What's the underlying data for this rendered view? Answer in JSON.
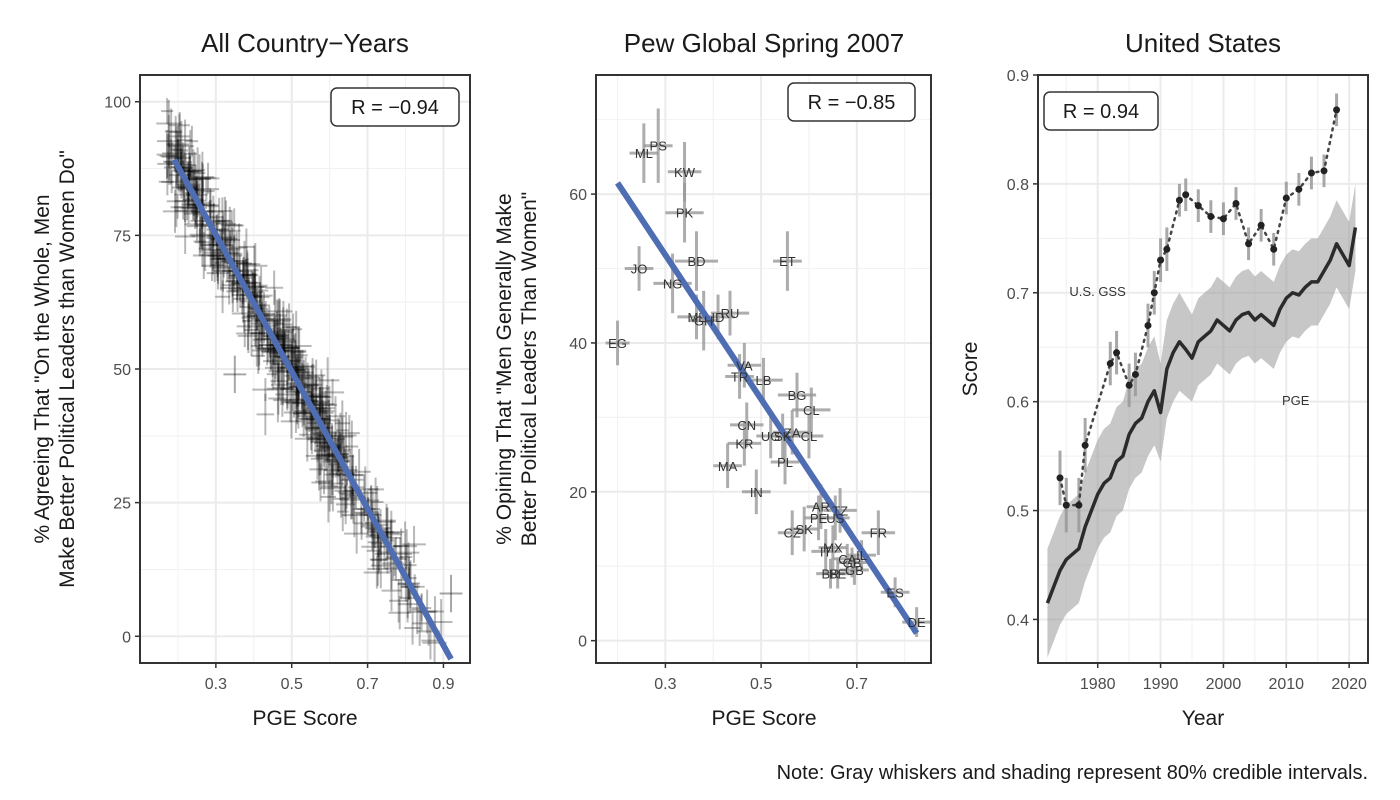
{
  "note": "Note: Gray whiskers and shading represent 80% credible intervals.",
  "colors": {
    "fit_line": "#4f6db3",
    "point": "#333333",
    "ci": "#999999",
    "grid": "#ebebeb",
    "border": "#333333"
  },
  "chart_data": [
    {
      "type": "scatter",
      "title": "All Country−Years",
      "xlabel": "PGE Score",
      "ylabel": "% Agreeing That \"On the Whole, Men|Make Better Political Leaders than Women Do\"",
      "xlim": [
        0.1,
        0.97
      ],
      "ylim": [
        -5,
        105
      ],
      "xticks": [
        0.3,
        0.5,
        0.7,
        0.9
      ],
      "xtick_labels": [
        "0.3",
        "0.5",
        "0.7",
        "0.9"
      ],
      "yticks": [
        0,
        25,
        50,
        75,
        100
      ],
      "ytick_labels": [
        "0",
        "25",
        "50",
        "75",
        "100"
      ],
      "annotation": "R = −0.94",
      "fit": {
        "slope": -128,
        "intercept": 113.5,
        "x": [
          0.19,
          0.92
        ]
      },
      "cloud": {
        "n": 520,
        "x_range": [
          0.17,
          0.93
        ],
        "slope": -128,
        "intercept": 113.5,
        "noise_sd": 4.2,
        "whisker_x": 0.025,
        "whisker_y": 3.5
      },
      "outliers": [
        {
          "x": 0.35,
          "y": 49
        },
        {
          "x": 0.92,
          "y": 8
        },
        {
          "x": 0.2,
          "y": 92
        }
      ],
      "grid": true
    },
    {
      "type": "scatter",
      "title": "Pew Global Spring 2007",
      "xlabel": "PGE Score",
      "ylabel": "% Opining That \"Men Generally Make|Better Political Leaders Than Women\"",
      "xlim": [
        0.155,
        0.855
      ],
      "ylim": [
        -3,
        76
      ],
      "xticks": [
        0.3,
        0.5,
        0.7
      ],
      "xtick_labels": [
        "0.3",
        "0.5",
        "0.7"
      ],
      "yticks": [
        0,
        20,
        40,
        60
      ],
      "ytick_labels": [
        "0",
        "20",
        "40",
        "60"
      ],
      "annotation": "R = −0.85",
      "fit": {
        "x": [
          0.2,
          0.825
        ],
        "y": [
          61.5,
          1.0
        ]
      },
      "points": [
        {
          "label": "PS",
          "x": 0.285,
          "y": 66.5,
          "ex": 0.03,
          "ey": 5
        },
        {
          "label": "ML",
          "x": 0.255,
          "y": 65.5,
          "ex": 0.03,
          "ey": 4
        },
        {
          "label": "KW",
          "x": 0.34,
          "y": 63,
          "ex": 0.035,
          "ey": 4
        },
        {
          "label": "PK",
          "x": 0.34,
          "y": 57.5,
          "ex": 0.04,
          "ey": 4
        },
        {
          "label": "BD",
          "x": 0.365,
          "y": 51,
          "ex": 0.045,
          "ey": 4
        },
        {
          "label": "ET",
          "x": 0.555,
          "y": 51,
          "ex": 0.03,
          "ey": 4
        },
        {
          "label": "JO",
          "x": 0.245,
          "y": 50,
          "ex": 0.03,
          "ey": 3
        },
        {
          "label": "NG",
          "x": 0.315,
          "y": 48,
          "ex": 0.04,
          "ey": 4
        },
        {
          "label": "ML",
          "x": 0.365,
          "y": 43.5,
          "ex": 0.04,
          "ey": 3
        },
        {
          "label": "GH",
          "x": 0.38,
          "y": 43,
          "ex": 0.03,
          "ey": 4
        },
        {
          "label": "ID",
          "x": 0.41,
          "y": 43.5,
          "ex": 0.035,
          "ey": 3
        },
        {
          "label": "RU",
          "x": 0.435,
          "y": 44,
          "ex": 0.04,
          "ey": 3
        },
        {
          "label": "EG",
          "x": 0.2,
          "y": 40,
          "ex": 0.025,
          "ey": 3
        },
        {
          "label": "VA",
          "x": 0.465,
          "y": 37,
          "ex": 0.035,
          "ey": 3
        },
        {
          "label": "TR",
          "x": 0.455,
          "y": 35.5,
          "ex": 0.03,
          "ey": 3
        },
        {
          "label": "LB",
          "x": 0.505,
          "y": 35,
          "ex": 0.04,
          "ey": 3
        },
        {
          "label": "BG",
          "x": 0.575,
          "y": 33,
          "ex": 0.04,
          "ey": 3
        },
        {
          "label": "CL",
          "x": 0.605,
          "y": 31,
          "ex": 0.04,
          "ey": 3
        },
        {
          "label": "CN",
          "x": 0.47,
          "y": 29,
          "ex": 0.035,
          "ey": 3
        },
        {
          "label": "ZA",
          "x": 0.565,
          "y": 28,
          "ex": 0.04,
          "ey": 3
        },
        {
          "label": "UG",
          "x": 0.52,
          "y": 27.5,
          "ex": 0.03,
          "ey": 3
        },
        {
          "label": "SK",
          "x": 0.545,
          "y": 27.5,
          "ex": 0.03,
          "ey": 3
        },
        {
          "label": "CL",
          "x": 0.6,
          "y": 27.5,
          "ex": 0.03,
          "ey": 3
        },
        {
          "label": "KR",
          "x": 0.465,
          "y": 26.5,
          "ex": 0.035,
          "ey": 3
        },
        {
          "label": "PL",
          "x": 0.55,
          "y": 24,
          "ex": 0.03,
          "ey": 3
        },
        {
          "label": "MA",
          "x": 0.43,
          "y": 23.5,
          "ex": 0.03,
          "ey": 3
        },
        {
          "label": "IN",
          "x": 0.49,
          "y": 20,
          "ex": 0.03,
          "ey": 3
        },
        {
          "label": "AR",
          "x": 0.625,
          "y": 18,
          "ex": 0.03,
          "ey": 3
        },
        {
          "label": "TZ",
          "x": 0.665,
          "y": 17.5,
          "ex": 0.035,
          "ey": 3
        },
        {
          "label": "PE",
          "x": 0.62,
          "y": 16.5,
          "ex": 0.03,
          "ey": 3
        },
        {
          "label": "US",
          "x": 0.655,
          "y": 16.5,
          "ex": 0.03,
          "ey": 3
        },
        {
          "label": "CZ",
          "x": 0.565,
          "y": 14.5,
          "ex": 0.03,
          "ey": 3
        },
        {
          "label": "SK",
          "x": 0.59,
          "y": 15,
          "ex": 0.03,
          "ey": 3
        },
        {
          "label": "FR",
          "x": 0.745,
          "y": 14.5,
          "ex": 0.035,
          "ey": 3
        },
        {
          "label": "IT",
          "x": 0.635,
          "y": 12,
          "ex": 0.03,
          "ey": 3
        },
        {
          "label": "MX",
          "x": 0.65,
          "y": 12.5,
          "ex": 0.03,
          "ey": 3
        },
        {
          "label": "CA",
          "x": 0.68,
          "y": 11,
          "ex": 0.03,
          "ey": 2
        },
        {
          "label": "GB",
          "x": 0.69,
          "y": 10.5,
          "ex": 0.03,
          "ey": 2
        },
        {
          "label": "IL",
          "x": 0.71,
          "y": 11.5,
          "ex": 0.03,
          "ey": 2
        },
        {
          "label": "BR",
          "x": 0.645,
          "y": 9,
          "ex": 0.03,
          "ey": 2
        },
        {
          "label": "BE",
          "x": 0.66,
          "y": 9,
          "ex": 0.03,
          "ey": 2
        },
        {
          "label": "GB",
          "x": 0.695,
          "y": 9.5,
          "ex": 0.03,
          "ey": 2
        },
        {
          "label": "ES",
          "x": 0.78,
          "y": 6.5,
          "ex": 0.03,
          "ey": 2
        },
        {
          "label": "DE",
          "x": 0.825,
          "y": 2.5,
          "ex": 0.03,
          "ey": 2
        }
      ],
      "grid": true
    },
    {
      "type": "line",
      "title": "United States",
      "xlabel": "Year",
      "ylabel": "Score",
      "xlim": [
        1970.5,
        2023
      ],
      "ylim": [
        0.36,
        0.9
      ],
      "xticks": [
        1970,
        1980,
        1990,
        2000,
        2010,
        2020
      ],
      "xtick_labels": [
        "1970",
        "1980",
        "1990",
        "2000",
        "2010",
        "2020"
      ],
      "yticks": [
        0.4,
        0.5,
        0.6,
        0.7,
        0.8,
        0.9
      ],
      "ytick_labels": [
        "0.4",
        "0.5",
        "0.6",
        "0.7",
        "0.8",
        "0.9"
      ],
      "annotation": "R = 0.94",
      "series": [
        {
          "name": "PGE",
          "style": "solid",
          "x": [
            1972,
            1973,
            1974,
            1975,
            1976,
            1977,
            1978,
            1979,
            1980,
            1981,
            1982,
            1983,
            1984,
            1985,
            1986,
            1987,
            1988,
            1989,
            1990,
            1991,
            1992,
            1993,
            1994,
            1995,
            1996,
            1997,
            1998,
            1999,
            2000,
            2001,
            2002,
            2003,
            2004,
            2005,
            2006,
            2007,
            2008,
            2009,
            2010,
            2011,
            2012,
            2013,
            2014,
            2015,
            2016,
            2017,
            2018,
            2019,
            2020,
            2021
          ],
          "y": [
            0.415,
            0.43,
            0.445,
            0.455,
            0.46,
            0.465,
            0.485,
            0.5,
            0.515,
            0.525,
            0.53,
            0.545,
            0.55,
            0.57,
            0.58,
            0.585,
            0.6,
            0.61,
            0.59,
            0.63,
            0.645,
            0.655,
            0.648,
            0.64,
            0.655,
            0.66,
            0.665,
            0.675,
            0.67,
            0.665,
            0.675,
            0.68,
            0.682,
            0.675,
            0.68,
            0.675,
            0.67,
            0.685,
            0.695,
            0.7,
            0.698,
            0.705,
            0.71,
            0.71,
            0.72,
            0.73,
            0.745,
            0.735,
            0.725,
            0.76
          ],
          "lower": [
            0.365,
            0.38,
            0.395,
            0.405,
            0.41,
            0.415,
            0.435,
            0.45,
            0.465,
            0.475,
            0.48,
            0.495,
            0.5,
            0.52,
            0.53,
            0.535,
            0.55,
            0.56,
            0.545,
            0.585,
            0.6,
            0.61,
            0.605,
            0.6,
            0.615,
            0.62,
            0.625,
            0.635,
            0.63,
            0.625,
            0.635,
            0.64,
            0.642,
            0.635,
            0.64,
            0.635,
            0.63,
            0.645,
            0.655,
            0.66,
            0.658,
            0.665,
            0.67,
            0.67,
            0.68,
            0.69,
            0.705,
            0.695,
            0.685,
            0.72
          ],
          "upper": [
            0.465,
            0.48,
            0.495,
            0.505,
            0.51,
            0.515,
            0.535,
            0.55,
            0.565,
            0.575,
            0.58,
            0.595,
            0.6,
            0.62,
            0.63,
            0.635,
            0.65,
            0.66,
            0.635,
            0.675,
            0.69,
            0.7,
            0.69,
            0.68,
            0.695,
            0.7,
            0.705,
            0.715,
            0.71,
            0.705,
            0.715,
            0.72,
            0.722,
            0.715,
            0.72,
            0.715,
            0.71,
            0.725,
            0.735,
            0.74,
            0.738,
            0.745,
            0.75,
            0.75,
            0.76,
            0.77,
            0.785,
            0.775,
            0.765,
            0.8
          ]
        },
        {
          "name": "U.S. GSS",
          "style": "dotted",
          "x": [
            1974,
            1975,
            1977,
            1978,
            1982,
            1983,
            1985,
            1986,
            1988,
            1989,
            1990,
            1991,
            1993,
            1994,
            1996,
            1998,
            2000,
            2002,
            2004,
            2006,
            2008,
            2010,
            2012,
            2014,
            2016,
            2018
          ],
          "y": [
            0.53,
            0.505,
            0.505,
            0.56,
            0.635,
            0.645,
            0.615,
            0.625,
            0.67,
            0.7,
            0.73,
            0.74,
            0.785,
            0.79,
            0.78,
            0.77,
            0.768,
            0.782,
            0.745,
            0.762,
            0.74,
            0.787,
            0.795,
            0.81,
            0.812,
            0.868
          ],
          "err": [
            0.025,
            0.025,
            0.025,
            0.025,
            0.02,
            0.02,
            0.02,
            0.02,
            0.02,
            0.02,
            0.02,
            0.02,
            0.015,
            0.015,
            0.015,
            0.015,
            0.015,
            0.015,
            0.015,
            0.015,
            0.015,
            0.015,
            0.015,
            0.015,
            0.015,
            0.015
          ]
        }
      ],
      "grid": true
    }
  ]
}
